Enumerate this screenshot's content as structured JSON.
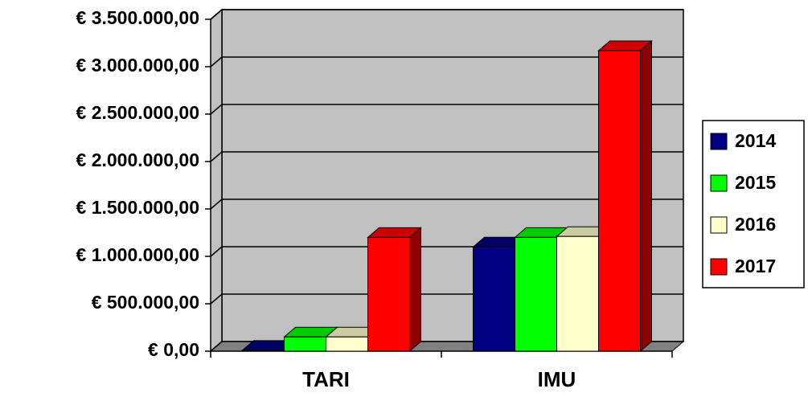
{
  "chart_data": {
    "type": "bar3d",
    "categories": [
      "TARI",
      "IMU"
    ],
    "series": [
      {
        "name": "2014",
        "color": "#000080",
        "values": [
          10000,
          1100000
        ]
      },
      {
        "name": "2015",
        "color": "#00ff00",
        "values": [
          150000,
          1200000
        ]
      },
      {
        "name": "2016",
        "color": "#ffffcc",
        "values": [
          150000,
          1210000
        ]
      },
      {
        "name": "2017",
        "color": "#ff0000",
        "values": [
          1200000,
          3170000
        ]
      }
    ],
    "ylim": [
      0,
      3500000
    ],
    "yticks": [
      {
        "value": 0,
        "label": "€ 0,00"
      },
      {
        "value": 500000,
        "label": "€ 500.000,00"
      },
      {
        "value": 1000000,
        "label": "€ 1.000.000,00"
      },
      {
        "value": 1500000,
        "label": "€ 1.500.000,00"
      },
      {
        "value": 2000000,
        "label": "€ 2.000.000,00"
      },
      {
        "value": 2500000,
        "label": "€ 2.500.000,00"
      },
      {
        "value": 3000000,
        "label": "€ 3.000.000,00"
      },
      {
        "value": 3500000,
        "label": "€ 3.500.000,00"
      }
    ],
    "grid": true,
    "legend": "right"
  }
}
